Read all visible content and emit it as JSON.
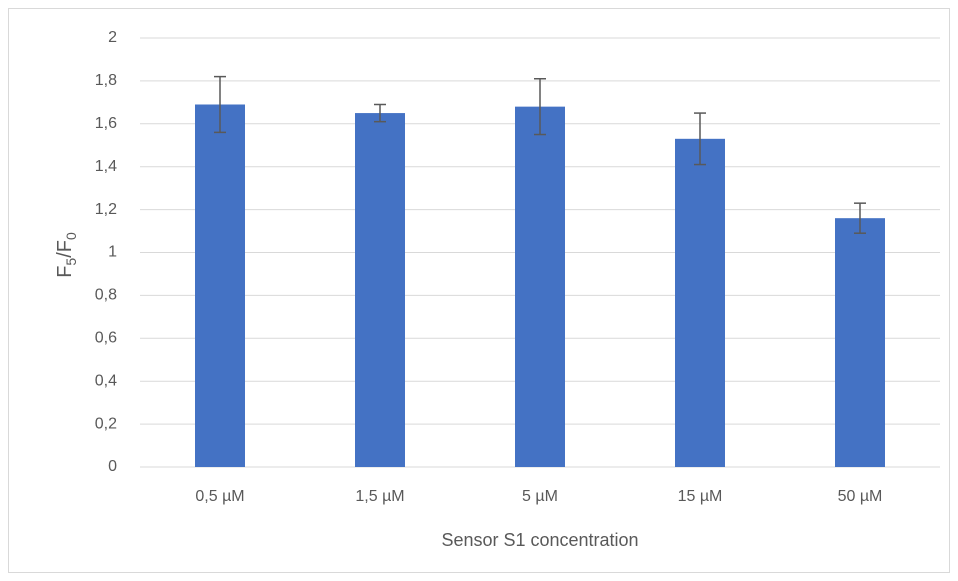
{
  "chart_data": {
    "type": "bar",
    "categories": [
      "0,5 µM",
      "1,5 µM",
      "5 µM",
      "15 µM",
      "50 µM"
    ],
    "values": [
      1.69,
      1.65,
      1.68,
      1.53,
      1.16
    ],
    "errors": [
      0.13,
      0.04,
      0.13,
      0.12,
      0.07
    ],
    "color": "#4472c4",
    "error_color": "#595959",
    "x_label": "Sensor S1 concentration",
    "y_label": [
      "F",
      "5",
      "/F",
      "0"
    ],
    "ylim": [
      0,
      2
    ],
    "yticks": [
      0,
      {
        "value": 0.2,
        "label": "0,2"
      },
      {
        "value": 0.4,
        "label": "0,4"
      },
      {
        "value": 0.6,
        "label": "0,6"
      },
      {
        "value": 0.8,
        "label": "0,8"
      },
      1,
      {
        "value": 1.2,
        "label": "1,2"
      },
      {
        "value": 1.4,
        "label": "1,4"
      },
      {
        "value": 1.6,
        "label": "1,6"
      },
      {
        "value": 1.8,
        "label": "1,8"
      },
      2
    ],
    "grid": true
  }
}
